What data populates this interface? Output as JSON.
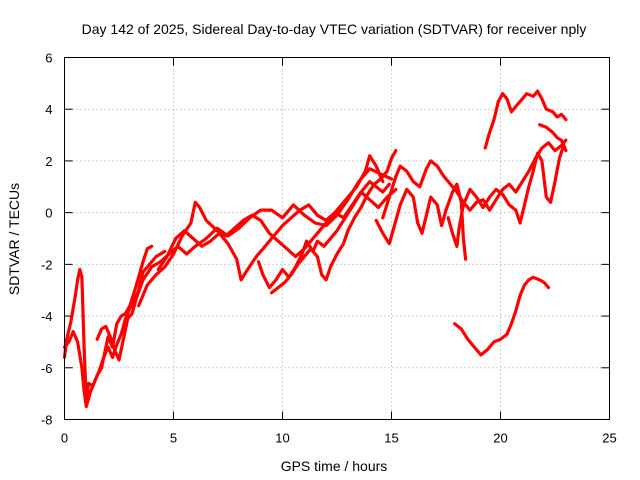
{
  "chart_data": {
    "type": "scatter",
    "title": "Day 142 of 2025, Sidereal Day-to-day VTEC variation (SDTVAR) for receiver nply",
    "xlabel": "GPS time / hours",
    "ylabel": "SDTVAR / TECUs",
    "xlim": [
      0,
      25
    ],
    "ylim": [
      -8,
      6
    ],
    "x_ticks": [
      "0",
      "5",
      "10",
      "15",
      "20",
      "25"
    ],
    "y_ticks": [
      "-8",
      "-6",
      "-4",
      "-2",
      "0",
      "2",
      "4",
      "6"
    ],
    "x_tick_values": [
      0,
      5,
      10,
      15,
      20,
      25
    ],
    "y_tick_values": [
      -8,
      -6,
      -4,
      -2,
      0,
      2,
      4,
      6
    ],
    "grid": true,
    "marker": "+",
    "color": "#ff0000",
    "series": [
      {
        "name": "trace-1",
        "points": [
          [
            0.0,
            -5.6
          ],
          [
            0.1,
            -4.9
          ],
          [
            0.3,
            -4.2
          ],
          [
            0.5,
            -3.2
          ],
          [
            0.6,
            -2.6
          ],
          [
            0.7,
            -2.2
          ],
          [
            0.8,
            -2.5
          ],
          [
            0.9,
            -5.2
          ],
          [
            1.0,
            -7.3
          ],
          [
            1.1,
            -6.6
          ],
          [
            1.3,
            -6.7
          ],
          [
            1.5,
            -6.3
          ],
          [
            1.7,
            -6.0
          ],
          [
            1.9,
            -5.2
          ],
          [
            2.0,
            -4.8
          ],
          [
            2.2,
            -5.2
          ],
          [
            2.4,
            -4.3
          ],
          [
            2.6,
            -4.0
          ],
          [
            2.8,
            -3.9
          ],
          [
            3.0,
            -3.6
          ],
          [
            3.3,
            -2.8
          ],
          [
            3.6,
            -1.9
          ],
          [
            3.8,
            -1.4
          ],
          [
            4.0,
            -1.3
          ]
        ]
      },
      {
        "name": "trace-2",
        "points": [
          [
            0.0,
            -5.2
          ],
          [
            0.2,
            -5.0
          ],
          [
            0.4,
            -4.6
          ],
          [
            0.6,
            -5.0
          ],
          [
            0.8,
            -6.0
          ],
          [
            0.9,
            -6.9
          ],
          [
            1.0,
            -7.5
          ],
          [
            1.2,
            -6.9
          ],
          [
            1.4,
            -6.5
          ],
          [
            1.6,
            -6.1
          ],
          [
            1.8,
            -5.6
          ],
          [
            2.0,
            -5.2
          ],
          [
            2.2,
            -5.6
          ],
          [
            2.4,
            -5.1
          ],
          [
            2.6,
            -4.7
          ],
          [
            2.8,
            -4.1
          ],
          [
            3.0,
            -3.7
          ],
          [
            3.2,
            -3.4
          ],
          [
            3.4,
            -3.0
          ],
          [
            3.6,
            -2.3
          ],
          [
            3.9,
            -2.0
          ],
          [
            4.2,
            -1.7
          ],
          [
            4.6,
            -1.5
          ]
        ]
      },
      {
        "name": "trace-3",
        "points": [
          [
            1.5,
            -4.9
          ],
          [
            1.7,
            -4.5
          ],
          [
            1.9,
            -4.4
          ],
          [
            2.1,
            -4.8
          ],
          [
            2.3,
            -5.3
          ],
          [
            2.5,
            -5.7
          ],
          [
            2.7,
            -4.9
          ],
          [
            2.9,
            -4.1
          ],
          [
            3.1,
            -3.9
          ],
          [
            3.3,
            -3.3
          ],
          [
            3.6,
            -2.6
          ],
          [
            4.0,
            -2.1
          ],
          [
            4.4,
            -1.9
          ],
          [
            4.8,
            -1.6
          ],
          [
            5.2,
            -1.3
          ],
          [
            5.6,
            -1.6
          ],
          [
            6.0,
            -1.3
          ],
          [
            6.5,
            -1.0
          ],
          [
            7.0,
            -0.6
          ],
          [
            7.5,
            -0.9
          ],
          [
            8.0,
            -0.6
          ],
          [
            8.5,
            -0.2
          ],
          [
            9.0,
            0.1
          ],
          [
            9.5,
            0.1
          ],
          [
            10.0,
            -0.2
          ],
          [
            10.5,
            0.3
          ],
          [
            11.0,
            -0.1
          ],
          [
            11.5,
            -0.4
          ],
          [
            12.0,
            -0.5
          ],
          [
            12.5,
            -0.1
          ],
          [
            13.0,
            0.5
          ],
          [
            13.5,
            1.2
          ],
          [
            14.0,
            1.7
          ],
          [
            14.5,
            1.5
          ],
          [
            15.0,
            1.3
          ]
        ]
      },
      {
        "name": "trace-4",
        "points": [
          [
            3.4,
            -3.6
          ],
          [
            3.8,
            -2.8
          ],
          [
            4.2,
            -2.4
          ],
          [
            4.6,
            -2.1
          ],
          [
            5.0,
            -1.6
          ],
          [
            5.4,
            -0.9
          ],
          [
            5.8,
            -0.4
          ],
          [
            6.0,
            0.4
          ],
          [
            6.2,
            0.2
          ],
          [
            6.5,
            -0.3
          ],
          [
            7.0,
            -0.7
          ],
          [
            7.4,
            -0.9
          ],
          [
            7.8,
            -0.6
          ],
          [
            8.2,
            -0.3
          ],
          [
            8.6,
            -0.1
          ],
          [
            9.0,
            -0.3
          ],
          [
            9.4,
            -0.8
          ],
          [
            9.8,
            -1.1
          ],
          [
            10.2,
            -1.4
          ],
          [
            10.6,
            -1.7
          ],
          [
            11.0,
            -1.4
          ],
          [
            11.4,
            -1.0
          ],
          [
            11.8,
            -0.6
          ],
          [
            12.2,
            -0.2
          ],
          [
            12.6,
            0.2
          ],
          [
            13.0,
            0.6
          ],
          [
            13.4,
            1.0
          ],
          [
            13.8,
            1.6
          ],
          [
            14.0,
            2.2
          ],
          [
            14.3,
            1.8
          ],
          [
            14.6,
            1.2
          ]
        ]
      },
      {
        "name": "trace-5",
        "points": [
          [
            4.3,
            -2.2
          ],
          [
            4.7,
            -1.7
          ],
          [
            5.1,
            -1.0
          ],
          [
            5.5,
            -0.7
          ],
          [
            5.9,
            -1.0
          ],
          [
            6.3,
            -1.3
          ],
          [
            6.7,
            -1.1
          ],
          [
            7.1,
            -0.8
          ],
          [
            7.5,
            -1.2
          ],
          [
            7.9,
            -1.8
          ],
          [
            8.1,
            -2.6
          ],
          [
            8.4,
            -2.2
          ],
          [
            8.8,
            -1.7
          ],
          [
            9.2,
            -1.3
          ],
          [
            9.6,
            -0.9
          ],
          [
            10.0,
            -0.5
          ],
          [
            10.4,
            -0.2
          ],
          [
            10.8,
            0.1
          ],
          [
            11.2,
            0.3
          ],
          [
            11.6,
            -0.1
          ],
          [
            12.0,
            -0.3
          ],
          [
            12.4,
            0.0
          ],
          [
            12.8,
            -0.2
          ],
          [
            13.2,
            0.3
          ],
          [
            13.6,
            0.8
          ],
          [
            14.0,
            0.5
          ],
          [
            14.4,
            0.2
          ],
          [
            14.8,
            0.6
          ],
          [
            15.2,
            0.9
          ]
        ]
      },
      {
        "name": "trace-6",
        "points": [
          [
            8.9,
            -1.9
          ],
          [
            9.1,
            -2.4
          ],
          [
            9.4,
            -2.9
          ],
          [
            9.7,
            -2.6
          ],
          [
            10.0,
            -2.2
          ],
          [
            10.3,
            -2.5
          ],
          [
            10.6,
            -2.1
          ],
          [
            10.9,
            -1.6
          ],
          [
            11.1,
            -1.1
          ],
          [
            11.4,
            -1.5
          ],
          [
            11.6,
            -1.1
          ],
          [
            11.9,
            -1.3
          ],
          [
            12.2,
            -1.0
          ],
          [
            12.5,
            -0.7
          ],
          [
            12.8,
            -0.3
          ],
          [
            13.1,
            0.1
          ],
          [
            13.4,
            0.5
          ],
          [
            13.7,
            0.9
          ],
          [
            14.0,
            1.2
          ],
          [
            14.3,
            1.0
          ],
          [
            14.6,
            0.8
          ],
          [
            14.9,
            1.1
          ]
        ]
      },
      {
        "name": "trace-7",
        "points": [
          [
            9.5,
            -3.1
          ],
          [
            9.8,
            -2.9
          ],
          [
            10.1,
            -2.7
          ],
          [
            10.4,
            -2.4
          ],
          [
            10.7,
            -2.0
          ],
          [
            11.0,
            -1.7
          ],
          [
            11.3,
            -1.4
          ],
          [
            11.6,
            -1.7
          ],
          [
            11.8,
            -2.4
          ],
          [
            12.0,
            -2.6
          ],
          [
            12.2,
            -2.1
          ],
          [
            12.5,
            -1.6
          ],
          [
            12.8,
            -1.2
          ],
          [
            13.0,
            -0.7
          ],
          [
            13.3,
            -0.2
          ],
          [
            13.6,
            0.2
          ],
          [
            13.9,
            0.7
          ],
          [
            14.2,
            1.1
          ],
          [
            14.5,
            1.3
          ],
          [
            14.8,
            1.6
          ],
          [
            15.0,
            2.1
          ],
          [
            15.2,
            2.4
          ]
        ]
      },
      {
        "name": "trace-8",
        "points": [
          [
            14.6,
            -0.2
          ],
          [
            14.9,
            0.6
          ],
          [
            15.2,
            1.4
          ],
          [
            15.4,
            1.8
          ],
          [
            15.7,
            1.6
          ],
          [
            16.0,
            1.2
          ],
          [
            16.3,
            1.0
          ],
          [
            16.6,
            1.7
          ],
          [
            16.8,
            2.0
          ],
          [
            17.1,
            1.8
          ],
          [
            17.4,
            1.4
          ],
          [
            17.7,
            1.1
          ],
          [
            18.0,
            0.8
          ],
          [
            18.3,
            0.4
          ],
          [
            18.6,
            0.1
          ],
          [
            18.9,
            0.4
          ],
          [
            19.2,
            0.5
          ],
          [
            19.5,
            0.1
          ],
          [
            19.8,
            0.5
          ],
          [
            20.1,
            0.9
          ],
          [
            20.4,
            1.1
          ],
          [
            20.7,
            0.8
          ],
          [
            21.0,
            1.2
          ],
          [
            21.3,
            1.6
          ],
          [
            21.6,
            2.1
          ],
          [
            21.9,
            2.5
          ],
          [
            22.2,
            2.7
          ],
          [
            22.5,
            2.4
          ],
          [
            22.8,
            2.6
          ],
          [
            23.0,
            2.8
          ]
        ]
      },
      {
        "name": "trace-9",
        "points": [
          [
            14.3,
            -0.3
          ],
          [
            14.6,
            -0.8
          ],
          [
            14.9,
            -1.2
          ],
          [
            15.1,
            -0.6
          ],
          [
            15.4,
            0.3
          ],
          [
            15.7,
            0.9
          ],
          [
            16.0,
            0.6
          ],
          [
            16.2,
            -0.4
          ],
          [
            16.4,
            -0.8
          ],
          [
            16.6,
            -0.1
          ],
          [
            16.8,
            0.6
          ],
          [
            17.1,
            0.3
          ],
          [
            17.3,
            -0.5
          ],
          [
            17.5,
            0.1
          ],
          [
            17.8,
            0.8
          ],
          [
            18.0,
            1.1
          ],
          [
            18.2,
            0.4
          ],
          [
            18.3,
            -1.0
          ],
          [
            18.4,
            -1.8
          ]
        ]
      },
      {
        "name": "trace-10",
        "points": [
          [
            17.6,
            -0.2
          ],
          [
            17.8,
            -0.8
          ],
          [
            18.0,
            -1.3
          ],
          [
            18.1,
            -0.6
          ],
          [
            18.3,
            0.3
          ],
          [
            18.6,
            0.9
          ],
          [
            18.9,
            0.6
          ],
          [
            19.2,
            0.2
          ],
          [
            19.5,
            0.6
          ],
          [
            19.8,
            0.9
          ],
          [
            20.1,
            0.7
          ],
          [
            20.4,
            0.3
          ],
          [
            20.7,
            0.1
          ],
          [
            20.9,
            -0.4
          ],
          [
            21.1,
            0.3
          ],
          [
            21.3,
            1.0
          ],
          [
            21.5,
            1.6
          ],
          [
            21.7,
            2.3
          ],
          [
            21.9,
            2.0
          ],
          [
            22.1,
            0.6
          ],
          [
            22.3,
            0.4
          ],
          [
            22.5,
            1.2
          ],
          [
            22.7,
            2.1
          ],
          [
            22.9,
            2.6
          ]
        ]
      },
      {
        "name": "trace-11",
        "points": [
          [
            19.3,
            2.5
          ],
          [
            19.5,
            3.1
          ],
          [
            19.7,
            3.6
          ],
          [
            19.9,
            4.3
          ],
          [
            20.1,
            4.6
          ],
          [
            20.3,
            4.4
          ],
          [
            20.5,
            3.9
          ],
          [
            20.8,
            4.2
          ],
          [
            21.0,
            4.4
          ],
          [
            21.2,
            4.6
          ],
          [
            21.5,
            4.5
          ],
          [
            21.7,
            4.7
          ],
          [
            21.9,
            4.4
          ],
          [
            22.1,
            4.0
          ],
          [
            22.4,
            3.9
          ],
          [
            22.6,
            3.7
          ],
          [
            22.8,
            3.8
          ],
          [
            23.0,
            3.6
          ]
        ]
      },
      {
        "name": "trace-12",
        "points": [
          [
            21.8,
            3.4
          ],
          [
            22.1,
            3.3
          ],
          [
            22.4,
            3.1
          ],
          [
            22.6,
            2.9
          ],
          [
            22.8,
            2.8
          ],
          [
            23.0,
            2.4
          ]
        ]
      },
      {
        "name": "trace-13",
        "points": [
          [
            17.9,
            -4.3
          ],
          [
            18.2,
            -4.5
          ],
          [
            18.5,
            -4.9
          ],
          [
            18.8,
            -5.2
          ],
          [
            19.1,
            -5.5
          ],
          [
            19.4,
            -5.3
          ],
          [
            19.7,
            -5.0
          ],
          [
            20.0,
            -4.9
          ],
          [
            20.3,
            -4.7
          ],
          [
            20.5,
            -4.3
          ],
          [
            20.7,
            -3.8
          ],
          [
            20.9,
            -3.2
          ],
          [
            21.1,
            -2.8
          ],
          [
            21.3,
            -2.6
          ],
          [
            21.5,
            -2.5
          ],
          [
            21.8,
            -2.6
          ],
          [
            22.0,
            -2.7
          ],
          [
            22.2,
            -2.9
          ]
        ]
      }
    ]
  }
}
